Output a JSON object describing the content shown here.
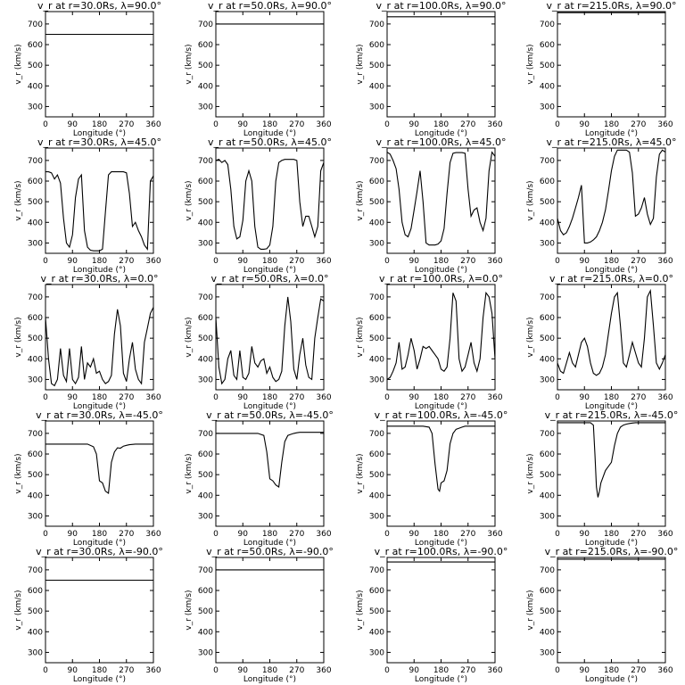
{
  "chart_data": {
    "type": "line",
    "xlabel": "Longitude (°)",
    "ylabel": "v_r (km/s)",
    "xlim": [
      0,
      360
    ],
    "ylim": [
      250,
      760
    ],
    "xticks": [
      0,
      90,
      180,
      270,
      360
    ],
    "yticks": [
      300,
      400,
      500,
      600,
      700
    ],
    "grid": false,
    "panels": [
      {
        "title": "v_r at r=30.0Rs, λ=90.0°",
        "x": [
          0,
          360
        ],
        "y": [
          650,
          650
        ]
      },
      {
        "title": "v_r at r=50.0Rs, λ=90.0°",
        "x": [
          0,
          360
        ],
        "y": [
          700,
          700
        ]
      },
      {
        "title": "v_r at r=100.0Rs, λ=90.0°",
        "x": [
          0,
          360
        ],
        "y": [
          735,
          735
        ]
      },
      {
        "title": "v_r at r=215.0Rs, λ=90.0°",
        "x": [
          0,
          360
        ],
        "y": [
          755,
          755
        ]
      },
      {
        "title": "v_r at r=30.0Rs, λ=45.0°",
        "x": [
          0,
          10,
          20,
          30,
          40,
          50,
          60,
          70,
          80,
          90,
          100,
          110,
          120,
          130,
          140,
          150,
          160,
          170,
          180,
          190,
          200,
          210,
          220,
          230,
          240,
          250,
          260,
          270,
          280,
          290,
          300,
          310,
          320,
          330,
          340,
          350,
          360
        ],
        "y": [
          645,
          645,
          640,
          610,
          630,
          590,
          420,
          300,
          280,
          340,
          520,
          610,
          630,
          360,
          280,
          265,
          262,
          262,
          262,
          270,
          450,
          630,
          645,
          645,
          645,
          645,
          645,
          640,
          540,
          380,
          400,
          360,
          330,
          290,
          270,
          600,
          625
        ]
      },
      {
        "title": "v_r at r=50.0Rs, λ=45.0°",
        "x": [
          0,
          10,
          20,
          30,
          40,
          50,
          60,
          70,
          80,
          90,
          100,
          110,
          120,
          130,
          140,
          150,
          160,
          170,
          180,
          190,
          200,
          210,
          220,
          230,
          240,
          250,
          260,
          270,
          280,
          290,
          300,
          310,
          320,
          330,
          340,
          350,
          360
        ],
        "y": [
          700,
          705,
          690,
          700,
          680,
          560,
          380,
          320,
          330,
          410,
          600,
          650,
          600,
          380,
          280,
          270,
          270,
          272,
          290,
          380,
          600,
          690,
          700,
          705,
          705,
          705,
          705,
          700,
          500,
          380,
          430,
          430,
          380,
          330,
          380,
          650,
          690
        ]
      },
      {
        "title": "v_r at r=100.0Rs, λ=45.0°",
        "x": [
          0,
          10,
          20,
          30,
          40,
          50,
          60,
          70,
          80,
          90,
          100,
          110,
          120,
          130,
          140,
          150,
          160,
          170,
          180,
          190,
          200,
          210,
          220,
          230,
          240,
          250,
          260,
          270,
          280,
          290,
          300,
          310,
          320,
          330,
          340,
          350,
          360
        ],
        "y": [
          740,
          730,
          700,
          660,
          560,
          400,
          340,
          330,
          370,
          460,
          550,
          650,
          500,
          300,
          290,
          290,
          290,
          295,
          310,
          370,
          540,
          690,
          735,
          738,
          738,
          738,
          735,
          560,
          430,
          460,
          470,
          400,
          360,
          420,
          650,
          740,
          720
        ]
      },
      {
        "title": "v_r at r=215.0Rs, λ=45.0°",
        "x": [
          0,
          10,
          20,
          30,
          40,
          50,
          60,
          70,
          80,
          90,
          100,
          110,
          120,
          130,
          140,
          150,
          160,
          170,
          180,
          190,
          200,
          210,
          220,
          230,
          240,
          250,
          260,
          270,
          280,
          290,
          300,
          310,
          320,
          330,
          340,
          350,
          360
        ],
        "y": [
          420,
          360,
          340,
          350,
          380,
          420,
          470,
          520,
          580,
          300,
          300,
          305,
          315,
          330,
          360,
          400,
          460,
          550,
          650,
          720,
          750,
          750,
          750,
          750,
          740,
          640,
          430,
          440,
          470,
          520,
          440,
          390,
          420,
          620,
          730,
          750,
          740
        ]
      },
      {
        "title": "v_r at r=30.0Rs, λ=0.0°",
        "x": [
          0,
          10,
          20,
          30,
          40,
          50,
          60,
          70,
          80,
          90,
          100,
          110,
          120,
          130,
          140,
          150,
          160,
          170,
          180,
          190,
          200,
          210,
          220,
          230,
          240,
          250,
          260,
          270,
          280,
          290,
          300,
          310,
          320,
          330,
          340,
          350,
          360
        ],
        "y": [
          600,
          400,
          280,
          270,
          300,
          450,
          320,
          290,
          450,
          300,
          280,
          310,
          460,
          300,
          380,
          360,
          400,
          330,
          340,
          300,
          280,
          290,
          320,
          520,
          640,
          560,
          330,
          290,
          400,
          480,
          350,
          300,
          280,
          480,
          550,
          620,
          650
        ]
      },
      {
        "title": "v_r at r=50.0Rs, λ=0.0°",
        "x": [
          0,
          10,
          20,
          30,
          40,
          50,
          60,
          70,
          80,
          90,
          100,
          110,
          120,
          130,
          140,
          150,
          160,
          170,
          180,
          190,
          200,
          210,
          220,
          230,
          240,
          250,
          260,
          270,
          280,
          290,
          300,
          310,
          320,
          330,
          340,
          350,
          360
        ],
        "y": [
          600,
          360,
          280,
          300,
          400,
          440,
          320,
          300,
          440,
          310,
          300,
          330,
          460,
          380,
          360,
          390,
          400,
          330,
          360,
          310,
          290,
          300,
          340,
          560,
          700,
          580,
          350,
          300,
          420,
          500,
          370,
          310,
          300,
          500,
          600,
          690,
          680
        ]
      },
      {
        "title": "v_r at r=100.0Rs, λ=0.0°",
        "x": [
          0,
          10,
          20,
          30,
          40,
          50,
          60,
          70,
          80,
          90,
          100,
          110,
          120,
          130,
          140,
          150,
          160,
          170,
          180,
          190,
          200,
          210,
          220,
          230,
          240,
          250,
          260,
          270,
          280,
          290,
          300,
          310,
          320,
          330,
          340,
          350,
          360
        ],
        "y": [
          300,
          310,
          340,
          380,
          480,
          350,
          360,
          420,
          500,
          440,
          350,
          400,
          460,
          450,
          460,
          440,
          420,
          400,
          350,
          340,
          360,
          500,
          720,
          680,
          400,
          340,
          360,
          420,
          480,
          380,
          340,
          400,
          600,
          720,
          700,
          620,
          400
        ]
      },
      {
        "title": "v_r at r=215.0Rs, λ=0.0°",
        "x": [
          0,
          10,
          20,
          30,
          40,
          50,
          60,
          70,
          80,
          90,
          100,
          110,
          120,
          130,
          140,
          150,
          160,
          170,
          180,
          190,
          200,
          210,
          220,
          230,
          240,
          250,
          260,
          270,
          280,
          290,
          300,
          310,
          320,
          330,
          340,
          350,
          360
        ],
        "y": [
          380,
          340,
          330,
          380,
          430,
          380,
          360,
          420,
          480,
          500,
          460,
          380,
          330,
          320,
          330,
          360,
          420,
          520,
          620,
          700,
          720,
          560,
          380,
          360,
          420,
          480,
          430,
          380,
          360,
          500,
          700,
          730,
          560,
          380,
          350,
          380,
          420
        ]
      },
      {
        "title": "v_r at r=30.0Rs, λ=-45.0°",
        "x": [
          0,
          20,
          40,
          60,
          80,
          100,
          120,
          140,
          160,
          170,
          180,
          190,
          200,
          210,
          220,
          230,
          240,
          250,
          260,
          270,
          280,
          300,
          330,
          360
        ],
        "y": [
          648,
          648,
          648,
          648,
          648,
          648,
          648,
          648,
          635,
          600,
          470,
          460,
          420,
          410,
          560,
          610,
          630,
          628,
          638,
          642,
          645,
          648,
          648,
          648
        ]
      },
      {
        "title": "v_r at r=50.0Rs, λ=-45.0°",
        "x": [
          0,
          20,
          40,
          60,
          80,
          100,
          120,
          140,
          160,
          170,
          180,
          190,
          200,
          210,
          220,
          230,
          240,
          250,
          260,
          270,
          280,
          300,
          330,
          360
        ],
        "y": [
          700,
          700,
          700,
          700,
          700,
          700,
          700,
          700,
          690,
          610,
          480,
          470,
          450,
          440,
          560,
          660,
          690,
          695,
          700,
          703,
          705,
          705,
          705,
          705
        ]
      },
      {
        "title": "v_r at r=100.0Rs, λ=-45.0°",
        "x": [
          0,
          20,
          40,
          60,
          80,
          100,
          120,
          140,
          150,
          160,
          170,
          175,
          180,
          190,
          200,
          210,
          220,
          230,
          240,
          250,
          260,
          270,
          290,
          320,
          360
        ],
        "y": [
          735,
          735,
          735,
          735,
          735,
          735,
          735,
          730,
          700,
          550,
          430,
          420,
          460,
          470,
          520,
          650,
          700,
          720,
          725,
          730,
          735,
          735,
          735,
          735,
          735
        ]
      },
      {
        "title": "v_r at r=215.0Rs, λ=-45.0°",
        "x": [
          0,
          20,
          40,
          60,
          80,
          100,
          110,
          120,
          125,
          130,
          135,
          140,
          145,
          150,
          160,
          170,
          180,
          190,
          200,
          210,
          220,
          230,
          240,
          250,
          260,
          270,
          290,
          320,
          360
        ],
        "y": [
          752,
          752,
          752,
          752,
          752,
          752,
          752,
          740,
          600,
          440,
          390,
          420,
          460,
          480,
          520,
          540,
          560,
          640,
          700,
          730,
          740,
          745,
          748,
          750,
          752,
          752,
          752,
          752,
          752
        ]
      },
      {
        "title": "v_r at r=30.0Rs, λ=-90.0°",
        "x": [
          0,
          360
        ],
        "y": [
          650,
          650
        ]
      },
      {
        "title": "v_r at r=50.0Rs, λ=-90.0°",
        "x": [
          0,
          360
        ],
        "y": [
          700,
          700
        ]
      },
      {
        "title": "v_r at r=100.0Rs, λ=-90.0°",
        "x": [
          0,
          360
        ],
        "y": [
          738,
          738
        ]
      },
      {
        "title": "v_r at r=215.0Rs, λ=-90.0°",
        "x": [
          0,
          360
        ],
        "y": [
          752,
          752
        ]
      }
    ]
  }
}
